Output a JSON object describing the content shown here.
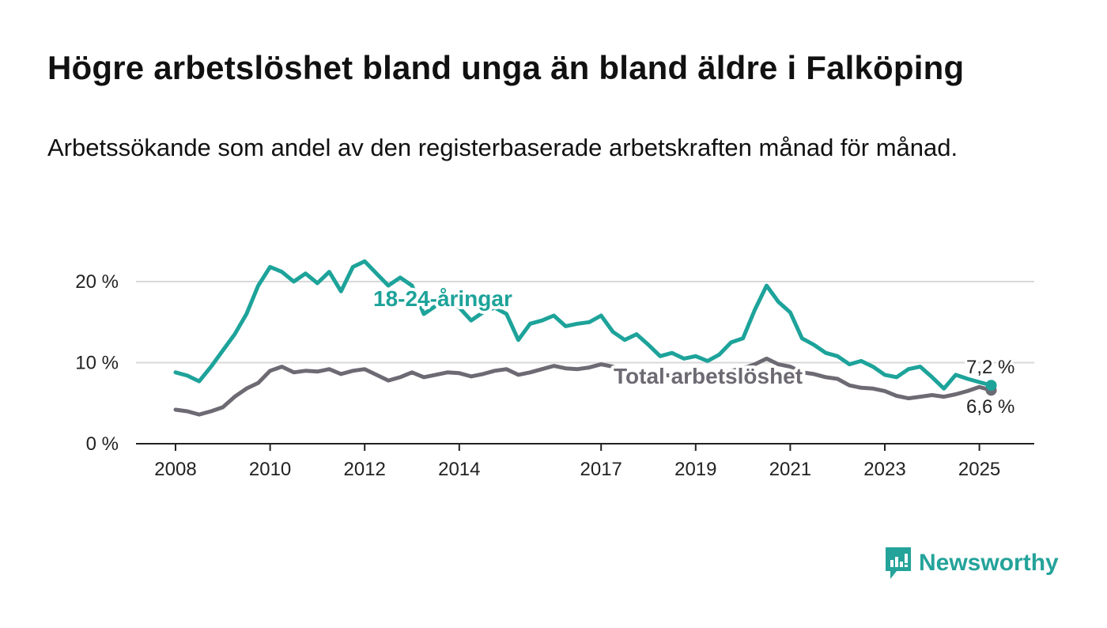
{
  "title": "Högre arbetslöshet bland unga än bland äldre i Falköping",
  "subtitle": "Arbetssökande som andel av den registerbaserade arbetskraften månad för månad.",
  "brand": "Newsworthy",
  "colors": {
    "youth": "#1da39a",
    "total": "#6d6a73",
    "grid": "#d9d9d9",
    "axis": "#222222"
  },
  "chart_data": {
    "type": "line",
    "x_range": [
      "2008-01",
      "2025-06"
    ],
    "ylim": [
      0,
      25
    ],
    "y_ticks": [
      0,
      10,
      20
    ],
    "y_tick_labels": [
      "0 %",
      "10 %",
      "20 %"
    ],
    "x_ticks": [
      "2008",
      "2010",
      "2012",
      "2014",
      "2017",
      "2019",
      "2021",
      "2023",
      "2025"
    ],
    "grid": "horizontal",
    "series": [
      {
        "name": "18-24-åringar",
        "end_label": "7,2 %",
        "points": [
          [
            "2008-01",
            8.8
          ],
          [
            "2008-04",
            8.4
          ],
          [
            "2008-07",
            7.7
          ],
          [
            "2008-10",
            9.5
          ],
          [
            "2009-01",
            11.5
          ],
          [
            "2009-04",
            13.5
          ],
          [
            "2009-07",
            16.0
          ],
          [
            "2009-10",
            19.5
          ],
          [
            "2010-01",
            21.8
          ],
          [
            "2010-04",
            21.2
          ],
          [
            "2010-07",
            20.0
          ],
          [
            "2010-10",
            21.0
          ],
          [
            "2011-01",
            19.8
          ],
          [
            "2011-04",
            21.2
          ],
          [
            "2011-07",
            18.8
          ],
          [
            "2011-10",
            21.8
          ],
          [
            "2012-01",
            22.5
          ],
          [
            "2012-04",
            21.0
          ],
          [
            "2012-07",
            19.5
          ],
          [
            "2012-10",
            20.5
          ],
          [
            "2013-01",
            19.5
          ],
          [
            "2013-04",
            16.0
          ],
          [
            "2013-07",
            17.0
          ],
          [
            "2013-10",
            17.8
          ],
          [
            "2014-01",
            16.8
          ],
          [
            "2014-04",
            15.2
          ],
          [
            "2014-07",
            16.2
          ],
          [
            "2014-10",
            16.8
          ],
          [
            "2015-01",
            16.0
          ],
          [
            "2015-04",
            12.8
          ],
          [
            "2015-07",
            14.8
          ],
          [
            "2015-10",
            15.2
          ],
          [
            "2016-01",
            15.8
          ],
          [
            "2016-04",
            14.5
          ],
          [
            "2016-07",
            14.8
          ],
          [
            "2016-10",
            15.0
          ],
          [
            "2017-01",
            15.8
          ],
          [
            "2017-04",
            13.8
          ],
          [
            "2017-07",
            12.8
          ],
          [
            "2017-10",
            13.5
          ],
          [
            "2018-01",
            12.2
          ],
          [
            "2018-04",
            10.8
          ],
          [
            "2018-07",
            11.2
          ],
          [
            "2018-10",
            10.5
          ],
          [
            "2019-01",
            10.8
          ],
          [
            "2019-04",
            10.2
          ],
          [
            "2019-07",
            11.0
          ],
          [
            "2019-10",
            12.5
          ],
          [
            "2020-01",
            13.0
          ],
          [
            "2020-04",
            16.5
          ],
          [
            "2020-07",
            19.5
          ],
          [
            "2020-10",
            17.5
          ],
          [
            "2021-01",
            16.2
          ],
          [
            "2021-04",
            13.0
          ],
          [
            "2021-07",
            12.2
          ],
          [
            "2021-10",
            11.2
          ],
          [
            "2022-01",
            10.8
          ],
          [
            "2022-04",
            9.8
          ],
          [
            "2022-07",
            10.2
          ],
          [
            "2022-10",
            9.5
          ],
          [
            "2023-01",
            8.5
          ],
          [
            "2023-04",
            8.2
          ],
          [
            "2023-07",
            9.2
          ],
          [
            "2023-10",
            9.5
          ],
          [
            "2024-01",
            8.2
          ],
          [
            "2024-04",
            6.8
          ],
          [
            "2024-07",
            8.5
          ],
          [
            "2024-10",
            8.0
          ],
          [
            "2025-01",
            7.6
          ],
          [
            "2025-04",
            7.2
          ]
        ]
      },
      {
        "name": "Total arbetslöshet",
        "end_label": "6,6 %",
        "points": [
          [
            "2008-01",
            4.2
          ],
          [
            "2008-04",
            4.0
          ],
          [
            "2008-07",
            3.6
          ],
          [
            "2008-10",
            4.0
          ],
          [
            "2009-01",
            4.5
          ],
          [
            "2009-04",
            5.8
          ],
          [
            "2009-07",
            6.8
          ],
          [
            "2009-10",
            7.5
          ],
          [
            "2010-01",
            9.0
          ],
          [
            "2010-04",
            9.5
          ],
          [
            "2010-07",
            8.8
          ],
          [
            "2010-10",
            9.0
          ],
          [
            "2011-01",
            8.9
          ],
          [
            "2011-04",
            9.2
          ],
          [
            "2011-07",
            8.6
          ],
          [
            "2011-10",
            9.0
          ],
          [
            "2012-01",
            9.2
          ],
          [
            "2012-04",
            8.5
          ],
          [
            "2012-07",
            7.8
          ],
          [
            "2012-10",
            8.2
          ],
          [
            "2013-01",
            8.8
          ],
          [
            "2013-04",
            8.2
          ],
          [
            "2013-07",
            8.5
          ],
          [
            "2013-10",
            8.8
          ],
          [
            "2014-01",
            8.7
          ],
          [
            "2014-04",
            8.3
          ],
          [
            "2014-07",
            8.6
          ],
          [
            "2014-10",
            9.0
          ],
          [
            "2015-01",
            9.2
          ],
          [
            "2015-04",
            8.5
          ],
          [
            "2015-07",
            8.8
          ],
          [
            "2015-10",
            9.2
          ],
          [
            "2016-01",
            9.6
          ],
          [
            "2016-04",
            9.3
          ],
          [
            "2016-07",
            9.2
          ],
          [
            "2016-10",
            9.4
          ],
          [
            "2017-01",
            9.8
          ],
          [
            "2017-04",
            9.5
          ],
          [
            "2017-07",
            9.0
          ],
          [
            "2017-10",
            8.8
          ],
          [
            "2018-01",
            8.6
          ],
          [
            "2018-04",
            8.5
          ],
          [
            "2018-07",
            8.4
          ],
          [
            "2018-10",
            8.5
          ],
          [
            "2019-01",
            8.7
          ],
          [
            "2019-04",
            8.5
          ],
          [
            "2019-07",
            8.8
          ],
          [
            "2019-10",
            9.0
          ],
          [
            "2020-01",
            9.3
          ],
          [
            "2020-04",
            9.8
          ],
          [
            "2020-07",
            10.5
          ],
          [
            "2020-10",
            9.8
          ],
          [
            "2021-01",
            9.5
          ],
          [
            "2021-04",
            8.8
          ],
          [
            "2021-07",
            8.6
          ],
          [
            "2021-10",
            8.2
          ],
          [
            "2022-01",
            8.0
          ],
          [
            "2022-04",
            7.2
          ],
          [
            "2022-07",
            6.9
          ],
          [
            "2022-10",
            6.8
          ],
          [
            "2023-01",
            6.5
          ],
          [
            "2023-04",
            5.9
          ],
          [
            "2023-07",
            5.6
          ],
          [
            "2023-10",
            5.8
          ],
          [
            "2024-01",
            6.0
          ],
          [
            "2024-04",
            5.8
          ],
          [
            "2024-07",
            6.1
          ],
          [
            "2024-10",
            6.5
          ],
          [
            "2025-01",
            7.0
          ],
          [
            "2025-04",
            6.6
          ]
        ]
      }
    ]
  }
}
